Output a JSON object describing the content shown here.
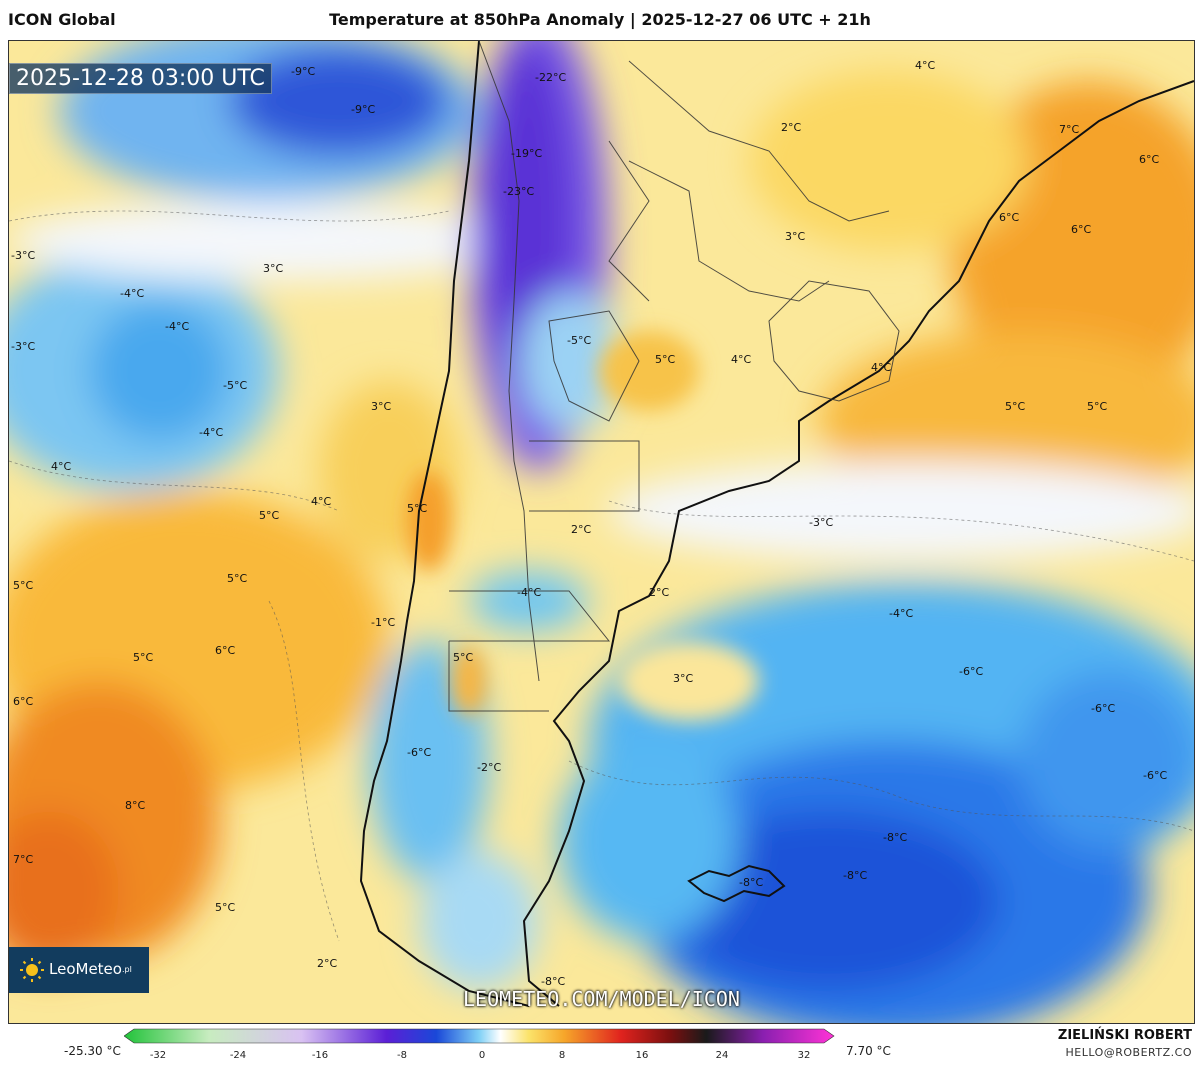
{
  "header": {
    "model_name": "ICON Global",
    "title": "Temperature at 850hPa Anomaly | 2025-12-27 06 UTC + 21h"
  },
  "map": {
    "timestamp": "2025-12-28 03:00 UTC",
    "logo_label": "LeoMeteo",
    "logo_suffix": ".pl",
    "url": "LEOMETEO.COM/MODEL/ICON",
    "labels": [
      {
        "text": "-9°C"
      },
      {
        "text": "-9°C"
      },
      {
        "text": "-22°C"
      },
      {
        "text": "-19°C"
      },
      {
        "text": "-23°C"
      },
      {
        "text": "4°C"
      },
      {
        "text": "2°C"
      },
      {
        "text": "7°C"
      },
      {
        "text": "6°C"
      },
      {
        "text": "6°C"
      },
      {
        "text": "6°C"
      },
      {
        "text": "-3°C"
      },
      {
        "text": "3°C"
      },
      {
        "text": "-4°C"
      },
      {
        "text": "-4°C"
      },
      {
        "text": "-3°C"
      },
      {
        "text": "3°C"
      },
      {
        "text": "-5°C"
      },
      {
        "text": "5°C"
      },
      {
        "text": "4°C"
      },
      {
        "text": "4°C"
      },
      {
        "text": "-5°C"
      },
      {
        "text": "3°C"
      },
      {
        "text": "-4°C"
      },
      {
        "text": "5°C"
      },
      {
        "text": "5°C"
      },
      {
        "text": "4°C"
      },
      {
        "text": "4°C"
      },
      {
        "text": "5°C"
      },
      {
        "text": "5°C"
      },
      {
        "text": "2°C"
      },
      {
        "text": "-3°C"
      },
      {
        "text": "5°C"
      },
      {
        "text": "5°C"
      },
      {
        "text": "-4°C"
      },
      {
        "text": "2°C"
      },
      {
        "text": "-4°C"
      },
      {
        "text": "-1°C"
      },
      {
        "text": "5°C"
      },
      {
        "text": "6°C"
      },
      {
        "text": "5°C"
      },
      {
        "text": "3°C"
      },
      {
        "text": "-6°C"
      },
      {
        "text": "6°C"
      },
      {
        "text": "-6°C"
      },
      {
        "text": "-6°C"
      },
      {
        "text": "-2°C"
      },
      {
        "text": "-6°C"
      },
      {
        "text": "8°C"
      },
      {
        "text": "-8°C"
      },
      {
        "text": "7°C"
      },
      {
        "text": "-8°C"
      },
      {
        "text": "-8°C"
      },
      {
        "text": "5°C"
      },
      {
        "text": "2°C"
      },
      {
        "text": "-8°C"
      }
    ]
  },
  "color_scale": {
    "min_label": "-25.30 °C",
    "max_label": "7.70 °C",
    "ticks": [
      "-32",
      "-24",
      "-16",
      "-8",
      "0",
      "8",
      "16",
      "24",
      "32"
    ]
  },
  "author": {
    "name": "ZIELIŃSKI ROBERT",
    "email": "HELLO@ROBERTZ.CO"
  }
}
